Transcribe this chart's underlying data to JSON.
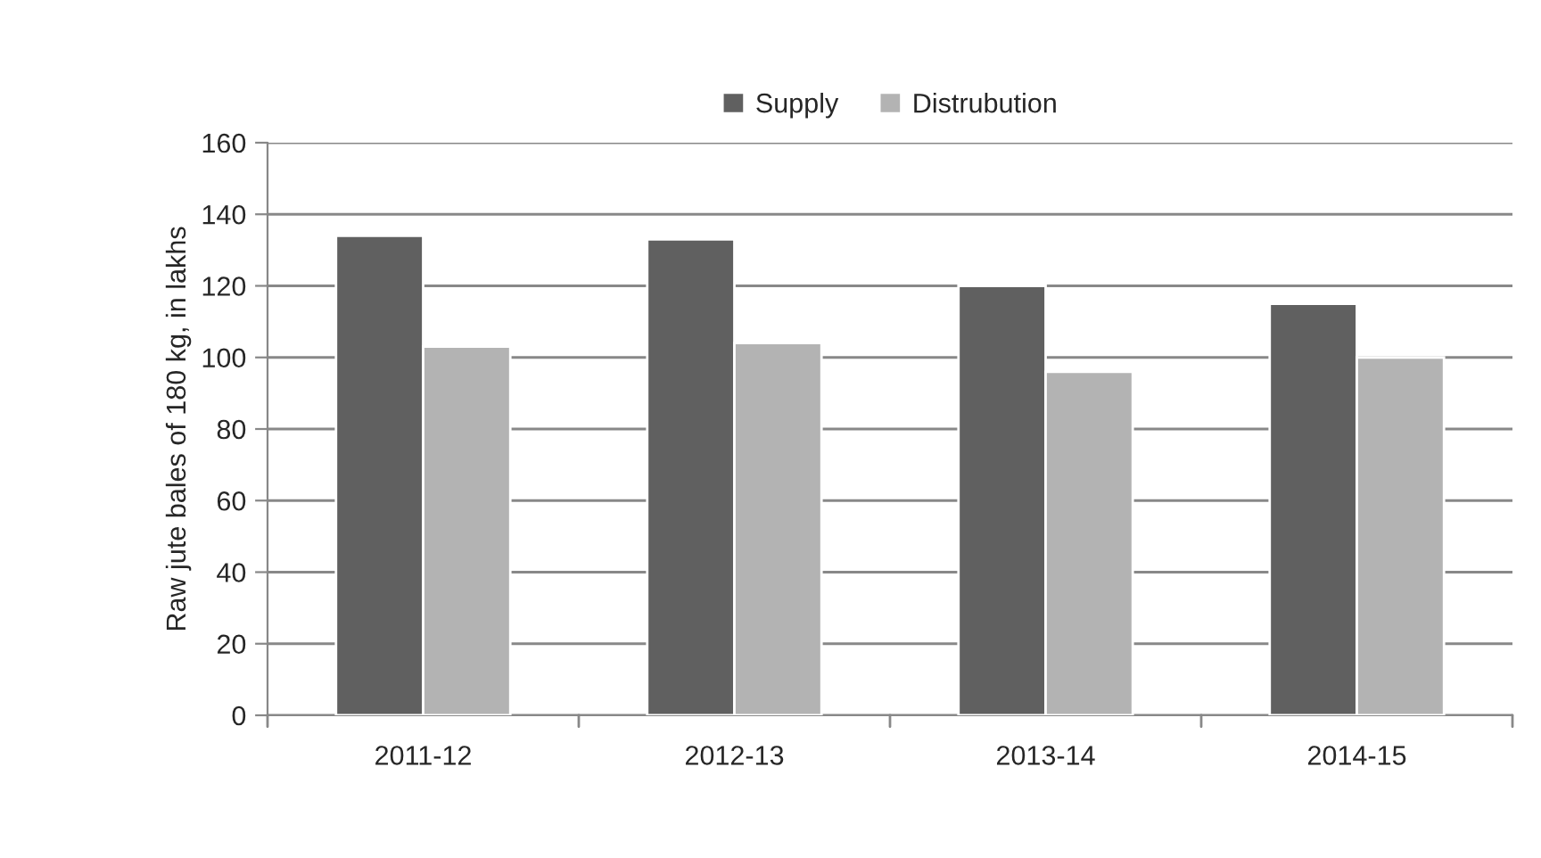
{
  "chart_data": {
    "type": "bar",
    "ylabel": "Raw jute bales of 180 kg, in lakhs",
    "categories": [
      "2011-12",
      "2012-13",
      "2013-14",
      "2014-15"
    ],
    "series": [
      {
        "name": "Supply",
        "color": "#606060",
        "values": [
          134,
          133,
          120,
          115
        ]
      },
      {
        "name": "Distrubution",
        "color": "#b3b3b3",
        "values": [
          103,
          104,
          96,
          100
        ]
      }
    ],
    "ylim": [
      0,
      160
    ],
    "yticks": [
      0,
      20,
      40,
      60,
      80,
      100,
      120,
      140,
      160
    ],
    "grid": "y",
    "legend": "top"
  }
}
